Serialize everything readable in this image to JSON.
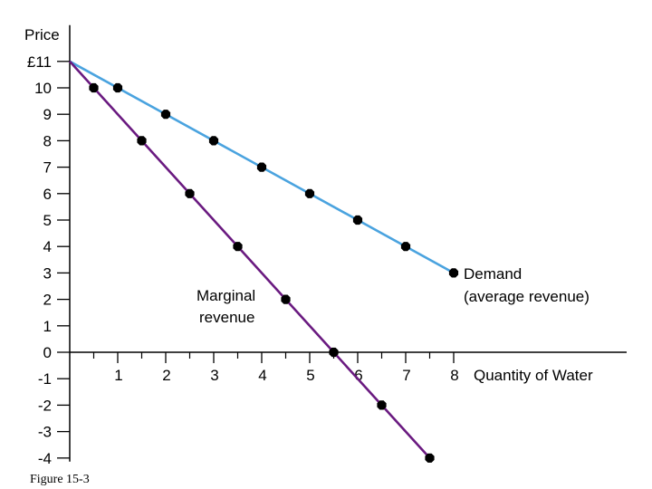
{
  "chart_data": {
    "type": "line",
    "ylabel": "Price",
    "xlabel": "Quantity of Water",
    "currency_prefix": "£",
    "x_ticks": [
      1,
      2,
      3,
      4,
      5,
      6,
      7,
      8
    ],
    "y_ticks": [
      -4,
      -3,
      -2,
      -1,
      0,
      1,
      2,
      3,
      4,
      5,
      6,
      7,
      8,
      9,
      10,
      11
    ],
    "y_tick_labels": [
      "-4",
      "-3",
      "-2",
      "-1",
      "0",
      "1",
      "2",
      "3",
      "4",
      "5",
      "6",
      "7",
      "8",
      "9",
      "10",
      "£11"
    ],
    "xlim": [
      0,
      8.5
    ],
    "ylim": [
      -4,
      11
    ],
    "series": [
      {
        "name": "Demand (average revenue)",
        "label_lines": [
          "Demand",
          "(average revenue)"
        ],
        "color": "#4aa3df",
        "line": [
          [
            0,
            11
          ],
          [
            8,
            3
          ]
        ],
        "points": [
          [
            1,
            10
          ],
          [
            2,
            9
          ],
          [
            3,
            8
          ],
          [
            4,
            7
          ],
          [
            5,
            6
          ],
          [
            6,
            5
          ],
          [
            7,
            4
          ],
          [
            8,
            3
          ]
        ]
      },
      {
        "name": "Marginal revenue",
        "label_lines": [
          "Marginal",
          "revenue"
        ],
        "color": "#6a1a80",
        "line": [
          [
            0,
            11
          ],
          [
            7.5,
            -4
          ]
        ],
        "points": [
          [
            0.5,
            10
          ],
          [
            1.5,
            8
          ],
          [
            2.5,
            6
          ],
          [
            3.5,
            4
          ],
          [
            4.5,
            2
          ],
          [
            5.5,
            0
          ],
          [
            6.5,
            -2
          ],
          [
            7.5,
            -4
          ]
        ]
      }
    ],
    "caption": "Figure 15-3"
  }
}
